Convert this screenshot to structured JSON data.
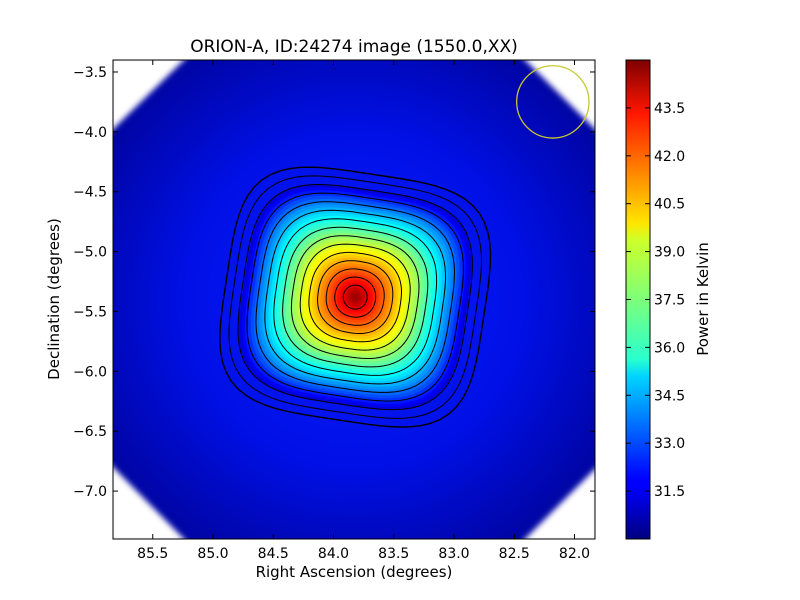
{
  "chart_data": {
    "type": "heatmap",
    "title": "ORION-A, ID:24274 image (1550.0,XX)",
    "xlabel": "Right Ascension (degrees)",
    "ylabel": "Declination (degrees)",
    "xlim": [
      85.83,
      81.83
    ],
    "ylim": [
      -7.4,
      -3.4
    ],
    "x_ticks": [
      85.5,
      85.0,
      84.5,
      84.0,
      83.5,
      83.0,
      82.5,
      82.0
    ],
    "x_tick_labels": [
      "85.5",
      "85.0",
      "84.5",
      "84.0",
      "83.5",
      "83.0",
      "82.5",
      "82.0"
    ],
    "y_ticks": [
      -3.5,
      -4.0,
      -4.5,
      -5.0,
      -5.5,
      -6.0,
      -6.5,
      -7.0
    ],
    "y_tick_labels": [
      "−3.5",
      "−4.0",
      "−4.5",
      "−5.0",
      "−5.5",
      "−6.0",
      "−6.5",
      "−7.0"
    ],
    "colorbar": {
      "label": "Power in Kelvin",
      "colormap": "jet",
      "range": [
        30.0,
        45.0
      ],
      "ticks": [
        31.5,
        33.0,
        34.5,
        36.0,
        37.5,
        39.0,
        40.5,
        42.0,
        43.5
      ],
      "tick_labels": [
        "31.5",
        "33.0",
        "34.5",
        "36.0",
        "37.5",
        "39.0",
        "40.5",
        "42.0",
        "43.5"
      ]
    },
    "source": {
      "center": [
        83.82,
        -5.38
      ],
      "peak_value": 44.5,
      "background_value": 31.3,
      "contour_count": 15
    },
    "beam_marker": {
      "center": [
        82.18,
        -3.75
      ],
      "radius_deg": 0.3,
      "color": "#c8c832"
    },
    "grid": false
  }
}
